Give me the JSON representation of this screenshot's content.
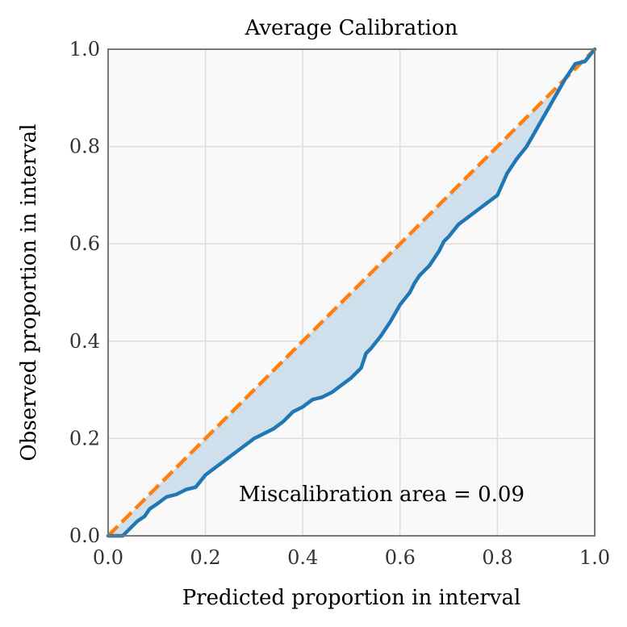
{
  "chart_data": {
    "type": "line",
    "title": "Average Calibration",
    "xlabel": "Predicted proportion in interval",
    "ylabel": "Observed proportion in interval",
    "xlim": [
      0,
      1
    ],
    "ylim": [
      0,
      1
    ],
    "grid": true,
    "xticks": [
      "0.0",
      "0.2",
      "0.4",
      "0.6",
      "0.8",
      "1.0"
    ],
    "yticks": [
      "0.0",
      "0.2",
      "0.4",
      "0.6",
      "0.8",
      "1.0"
    ],
    "annotation": "Miscalibration area = 0.09",
    "colors": {
      "calibration": "#1f77b4",
      "ideal": "#ff7f0e",
      "fill": "#cfe0ec",
      "background": "#f9f9f9",
      "grid": "#dddddd",
      "frame": "#777777"
    },
    "series": [
      {
        "role": "ideal",
        "style": "dashed",
        "x": [
          0,
          1
        ],
        "y": [
          0,
          1
        ]
      },
      {
        "role": "calibration",
        "style": "solid",
        "x": [
          0.0,
          0.03,
          0.04,
          0.06,
          0.075,
          0.085,
          0.1,
          0.12,
          0.14,
          0.16,
          0.18,
          0.2,
          0.22,
          0.24,
          0.26,
          0.28,
          0.3,
          0.32,
          0.34,
          0.36,
          0.38,
          0.4,
          0.42,
          0.44,
          0.46,
          0.48,
          0.5,
          0.52,
          0.53,
          0.54,
          0.56,
          0.58,
          0.6,
          0.62,
          0.63,
          0.64,
          0.66,
          0.68,
          0.69,
          0.7,
          0.72,
          0.74,
          0.76,
          0.78,
          0.8,
          0.82,
          0.84,
          0.86,
          0.88,
          0.9,
          0.92,
          0.94,
          0.96,
          0.98,
          1.0
        ],
        "y": [
          0.0,
          0.0,
          0.01,
          0.03,
          0.04,
          0.055,
          0.065,
          0.08,
          0.085,
          0.095,
          0.1,
          0.125,
          0.14,
          0.155,
          0.17,
          0.185,
          0.2,
          0.21,
          0.22,
          0.235,
          0.255,
          0.265,
          0.28,
          0.285,
          0.295,
          0.31,
          0.325,
          0.345,
          0.375,
          0.385,
          0.41,
          0.44,
          0.475,
          0.5,
          0.52,
          0.535,
          0.555,
          0.585,
          0.605,
          0.615,
          0.64,
          0.655,
          0.67,
          0.685,
          0.7,
          0.745,
          0.775,
          0.8,
          0.835,
          0.87,
          0.905,
          0.94,
          0.97,
          0.975,
          1.0
        ]
      }
    ]
  }
}
